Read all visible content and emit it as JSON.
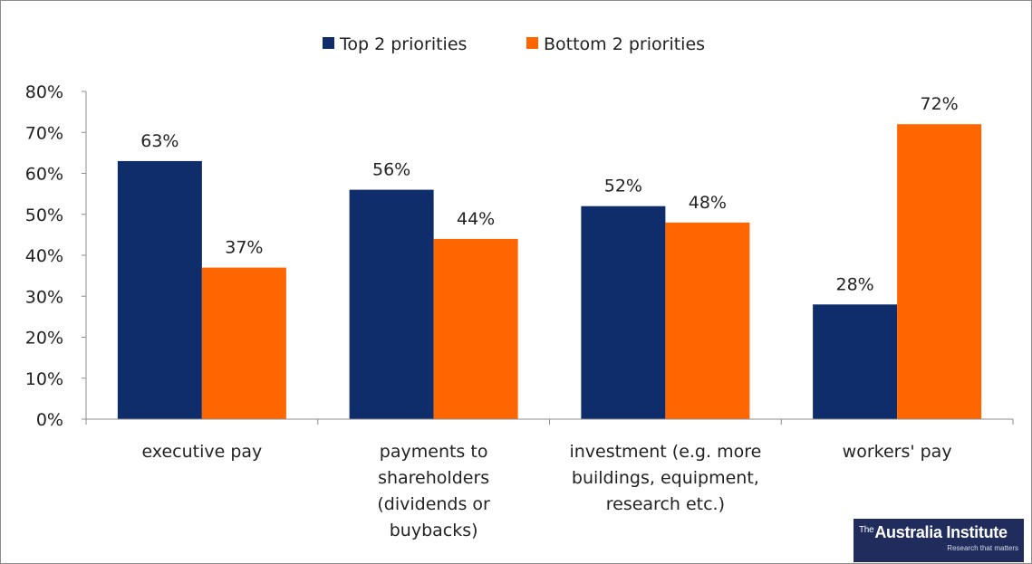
{
  "chart_data": {
    "type": "bar",
    "categories": [
      [
        "executive pay"
      ],
      [
        "payments to",
        "shareholders",
        "(dividends or",
        "buybacks)"
      ],
      [
        "investment (e.g. more",
        "buildings, equipment,",
        "research etc.)"
      ],
      [
        "workers' pay"
      ]
    ],
    "series": [
      {
        "name": "Top 2 priorities",
        "color": "#0f2d6b",
        "values": [
          63,
          56,
          52,
          28
        ],
        "labels": [
          "63%",
          "56%",
          "52%",
          "28%"
        ]
      },
      {
        "name": "Bottom 2 priorities",
        "color": "#ff6600",
        "values": [
          37,
          44,
          48,
          72
        ],
        "labels": [
          "37%",
          "44%",
          "48%",
          "72%"
        ]
      }
    ],
    "ylim": [
      0,
      80
    ],
    "yticks": [
      "0%",
      "10%",
      "20%",
      "30%",
      "40%",
      "50%",
      "60%",
      "70%",
      "80%"
    ],
    "ytick_values": [
      0,
      10,
      20,
      30,
      40,
      50,
      60,
      70,
      80
    ],
    "legend_position": "top-center",
    "grid": false,
    "title": "",
    "xlabel": "",
    "ylabel": ""
  },
  "logo": {
    "the": "The",
    "name": "Australia Institute",
    "tagline": "Research that matters"
  }
}
